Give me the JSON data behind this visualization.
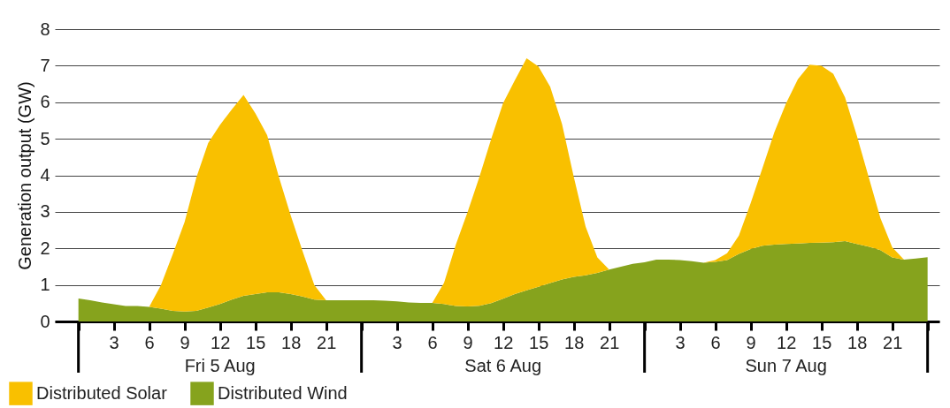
{
  "chart_data": {
    "type": "area",
    "ylabel": "Generation output (GW)",
    "stacked": true,
    "grid": "y",
    "legend": "bottom left",
    "x": [
      "--08-05T00:00",
      "--08-05T01:00",
      "--08-05T02:00",
      "--08-05T03:00",
      "--08-05T04:00",
      "--08-05T05:00",
      "--08-05T06:00",
      "--08-05T07:00",
      "--08-05T08:00",
      "--08-05T09:00",
      "--08-05T10:00",
      "--08-05T11:00",
      "--08-05T12:00",
      "--08-05T13:00",
      "--08-05T14:00",
      "--08-05T15:00",
      "--08-05T16:00",
      "--08-05T17:00",
      "--08-05T18:00",
      "--08-05T19:00",
      "--08-05T20:00",
      "--08-05T21:00",
      "--08-05T22:00",
      "--08-05T23:00",
      "--08-06T00:00",
      "--08-06T01:00",
      "--08-06T02:00",
      "--08-06T03:00",
      "--08-06T04:00",
      "--08-06T05:00",
      "--08-06T06:00",
      "--08-06T07:00",
      "--08-06T08:00",
      "--08-06T09:00",
      "--08-06T10:00",
      "--08-06T11:00",
      "--08-06T12:00",
      "--08-06T13:00",
      "--08-06T14:00",
      "--08-06T15:00",
      "--08-06T16:00",
      "--08-06T17:00",
      "--08-06T18:00",
      "--08-06T19:00",
      "--08-06T20:00",
      "--08-06T21:00",
      "--08-06T22:00",
      "--08-06T23:00",
      "--08-07T00:00",
      "--08-07T01:00",
      "--08-07T02:00",
      "--08-07T03:00",
      "--08-07T04:00",
      "--08-07T05:00",
      "--08-07T06:00",
      "--08-07T07:00",
      "--08-07T08:00",
      "--08-07T09:00",
      "--08-07T10:00",
      "--08-07T11:00",
      "--08-07T12:00",
      "--08-07T13:00",
      "--08-07T14:00",
      "--08-07T15:00",
      "--08-07T16:00",
      "--08-07T17:00",
      "--08-07T18:00",
      "--08-07T19:00",
      "--08-07T20:00",
      "--08-07T21:00",
      "--08-07T22:00",
      "--08-07T23:00",
      "--08-08T00:00"
    ],
    "series": [
      {
        "name": "Distributed Wind",
        "color": "#86a31d",
        "values": [
          0.63,
          0.58,
          0.52,
          0.47,
          0.42,
          0.42,
          0.4,
          0.35,
          0.29,
          0.27,
          0.29,
          0.38,
          0.48,
          0.6,
          0.7,
          0.75,
          0.8,
          0.8,
          0.75,
          0.68,
          0.6,
          0.58,
          0.58,
          0.58,
          0.58,
          0.58,
          0.57,
          0.55,
          0.52,
          0.51,
          0.51,
          0.48,
          0.42,
          0.41,
          0.43,
          0.5,
          0.62,
          0.75,
          0.85,
          0.95,
          1.05,
          1.15,
          1.22,
          1.26,
          1.33,
          1.42,
          1.5,
          1.58,
          1.62,
          1.69,
          1.69,
          1.68,
          1.65,
          1.61,
          1.63,
          1.68,
          1.85,
          1.98,
          2.07,
          2.1,
          2.12,
          2.13,
          2.15,
          2.16,
          2.17,
          2.2,
          2.12,
          2.05,
          1.95,
          1.75,
          1.69,
          1.72,
          1.76
        ]
      },
      {
        "name": "Distributed Solar",
        "color": "#f9c000",
        "values": [
          0,
          0,
          0,
          0,
          0,
          0,
          0,
          0.65,
          1.55,
          2.45,
          3.65,
          4.5,
          4.9,
          5.2,
          5.5,
          4.95,
          4.3,
          3.15,
          2.15,
          1.25,
          0.4,
          0,
          0,
          0,
          0,
          0,
          0,
          0,
          0,
          0,
          0,
          0.58,
          1.68,
          2.59,
          3.53,
          4.5,
          5.35,
          5.85,
          6.35,
          6.03,
          5.37,
          4.26,
          2.74,
          1.34,
          0.42,
          0,
          0,
          0,
          0,
          0,
          0,
          0,
          0,
          0,
          0.05,
          0.19,
          0.5,
          1.26,
          2.13,
          3.07,
          3.85,
          4.5,
          4.88,
          4.84,
          4.61,
          3.93,
          2.97,
          1.91,
          0.88,
          0.28,
          0,
          0,
          0
        ]
      }
    ],
    "xlim": [
      "--08-04T22:00",
      "--08-08T01:00"
    ],
    "xticks": [
      {
        "value": "--08-05T00:00",
        "label": null
      },
      {
        "value": "--08-05T03:00",
        "label": "3"
      },
      {
        "value": "--08-05T06:00",
        "label": "6"
      },
      {
        "value": "--08-05T09:00",
        "label": "9"
      },
      {
        "value": "--08-05T12:00",
        "label": "12"
      },
      {
        "value": "--08-05T15:00",
        "label": "15"
      },
      {
        "value": "--08-05T18:00",
        "label": "18"
      },
      {
        "value": "--08-05T21:00",
        "label": "21"
      },
      {
        "value": "--08-06T00:00",
        "label": null
      },
      {
        "value": "--08-06T03:00",
        "label": "3"
      },
      {
        "value": "--08-06T06:00",
        "label": "6"
      },
      {
        "value": "--08-06T09:00",
        "label": "9"
      },
      {
        "value": "--08-06T12:00",
        "label": "12"
      },
      {
        "value": "--08-06T15:00",
        "label": "15"
      },
      {
        "value": "--08-06T18:00",
        "label": "18"
      },
      {
        "value": "--08-06T21:00",
        "label": "21"
      },
      {
        "value": "--08-07T00:00",
        "label": null
      },
      {
        "value": "--08-07T03:00",
        "label": "3"
      },
      {
        "value": "--08-07T06:00",
        "label": "6"
      },
      {
        "value": "--08-07T09:00",
        "label": "9"
      },
      {
        "value": "--08-07T12:00",
        "label": "12"
      },
      {
        "value": "--08-07T15:00",
        "label": "15"
      },
      {
        "value": "--08-07T18:00",
        "label": "18"
      },
      {
        "value": "--08-07T21:00",
        "label": "21"
      },
      {
        "value": "--08-08T00:00",
        "label": null
      }
    ],
    "ylim": [
      0,
      8
    ],
    "yticks": [
      0,
      1,
      2,
      3,
      4,
      5,
      6,
      7,
      8
    ],
    "annotations": [
      "Fri 5 Aug",
      "Sat 6 Aug",
      "Sun 7 Aug"
    ]
  }
}
